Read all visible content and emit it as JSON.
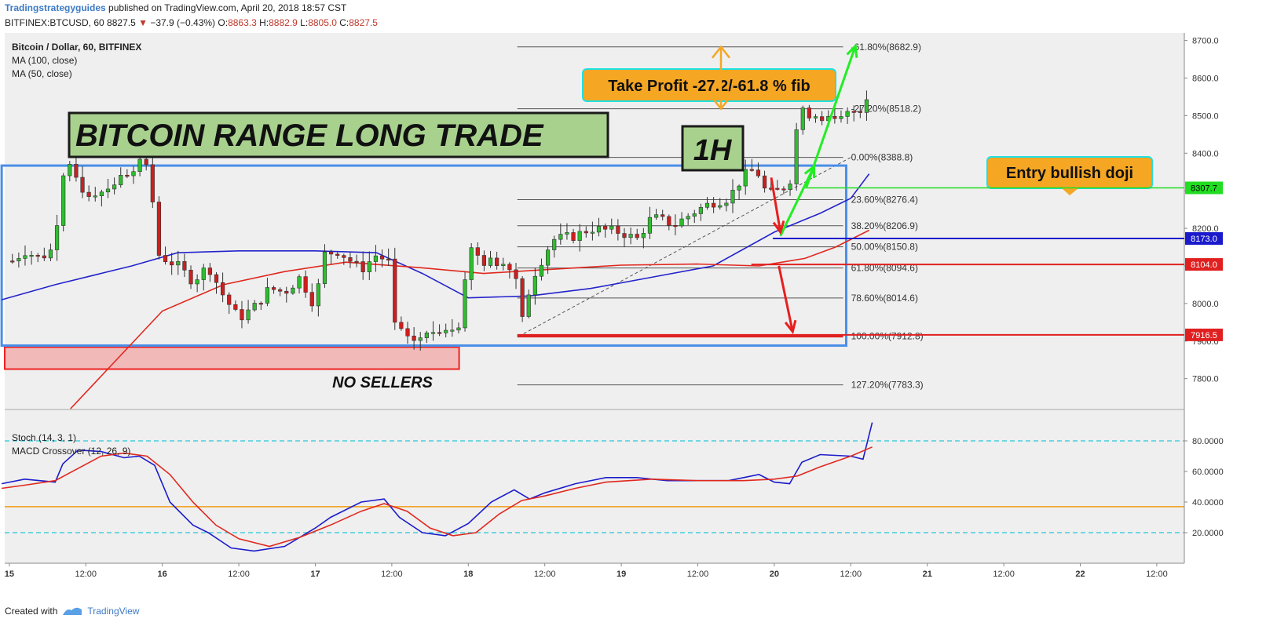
{
  "header": {
    "publisher": "Tradingstrategyguides",
    "published_text": "published on TradingView.com, April 20, 2018 18:57 CST",
    "symbol": "BITFINEX:BTCUSD, 60",
    "last": "8827.5",
    "change_arrow": "▼",
    "change": "−37.9 (−0.43%)",
    "o_label": "O:",
    "o": "8863.3",
    "h_label": "H:",
    "h": "8882.9",
    "l_label": "L:",
    "l": "8805.0",
    "c_label": "C:",
    "c": "8827.5"
  },
  "legend": {
    "title": "Bitcoin / Dollar, 60, BITFINEX",
    "ma100": "MA (100, close)",
    "ma50": "MA (50, close)"
  },
  "osc_legend": {
    "stoch": "Stoch (14, 3, 1)",
    "macd": "MACD Crossover (12, 26, 9)"
  },
  "footer": {
    "created": "Created with",
    "brand": "TradingView"
  },
  "colors": {
    "bull": "#2ebd2e",
    "bear": "#cc1f1f",
    "ma100": "#2323cc",
    "ma50": "#e0281e",
    "grid_bg": "#efefef",
    "range_box": "#4a8ee8",
    "annotation_bg": "#f5a623"
  },
  "chart_data": [
    {
      "type": "candlestick",
      "title": "Bitcoin / Dollar, 60, BITFINEX",
      "ylim": [
        7720,
        8720
      ],
      "xlim": [
        -0.03,
        7.68
      ],
      "x_unit": "days since Apr 15 00:00 (tick labels)",
      "x_ticks": [
        {
          "x": 0,
          "label": "15"
        },
        {
          "x": 0.5,
          "label": "12:00"
        },
        {
          "x": 1,
          "label": "16"
        },
        {
          "x": 1.5,
          "label": "12:00"
        },
        {
          "x": 2,
          "label": "17"
        },
        {
          "x": 2.5,
          "label": "12:00"
        },
        {
          "x": 3,
          "label": "18"
        },
        {
          "x": 3.5,
          "label": "12:00"
        },
        {
          "x": 4,
          "label": "19"
        },
        {
          "x": 4.5,
          "label": "12:00"
        },
        {
          "x": 5,
          "label": "20"
        },
        {
          "x": 5.5,
          "label": "12:00"
        },
        {
          "x": 6,
          "label": "21"
        },
        {
          "x": 6.5,
          "label": "12:00"
        },
        {
          "x": 7,
          "label": "22"
        },
        {
          "x": 7.5,
          "label": "12:00"
        }
      ],
      "y_ticks": [
        7800,
        7900,
        8000,
        8100,
        8200,
        8300,
        8400,
        8500,
        8600,
        8700
      ],
      "y_tick_labels": [
        "7800.0",
        "7900.0",
        "8000.0",
        "8100.0",
        "8200.0",
        "8300.0",
        "8400.0",
        "8500.0",
        "8600.0",
        "8700.0"
      ],
      "price_anchors": [
        {
          "x": -0.05,
          "p": 8090
        },
        {
          "x": 0.1,
          "p": 8140
        },
        {
          "x": 0.2,
          "p": 8120
        },
        {
          "x": 0.3,
          "p": 8150
        },
        {
          "x": 0.33,
          "p": 8330
        },
        {
          "x": 0.4,
          "p": 8360
        },
        {
          "x": 0.5,
          "p": 8290
        },
        {
          "x": 0.6,
          "p": 8300
        },
        {
          "x": 0.75,
          "p": 8340
        },
        {
          "x": 0.88,
          "p": 8390
        },
        {
          "x": 0.92,
          "p": 8340
        },
        {
          "x": 0.97,
          "p": 8130
        },
        {
          "x": 1.1,
          "p": 8100
        },
        {
          "x": 1.2,
          "p": 8060
        },
        {
          "x": 1.3,
          "p": 8100
        },
        {
          "x": 1.4,
          "p": 8020
        },
        {
          "x": 1.5,
          "p": 7960
        },
        {
          "x": 1.6,
          "p": 7990
        },
        {
          "x": 1.7,
          "p": 8040
        },
        {
          "x": 1.8,
          "p": 8030
        },
        {
          "x": 1.9,
          "p": 8070
        },
        {
          "x": 2.0,
          "p": 7990
        },
        {
          "x": 2.05,
          "p": 8130
        },
        {
          "x": 2.15,
          "p": 8140
        },
        {
          "x": 2.3,
          "p": 8090
        },
        {
          "x": 2.4,
          "p": 8130
        },
        {
          "x": 2.48,
          "p": 8110
        },
        {
          "x": 2.52,
          "p": 7950
        },
        {
          "x": 2.6,
          "p": 7900
        },
        {
          "x": 2.7,
          "p": 7910
        },
        {
          "x": 2.8,
          "p": 7930
        },
        {
          "x": 2.95,
          "p": 7950
        },
        {
          "x": 3.0,
          "p": 8150
        },
        {
          "x": 3.1,
          "p": 8110
        },
        {
          "x": 3.2,
          "p": 8110
        },
        {
          "x": 3.3,
          "p": 8100
        },
        {
          "x": 3.35,
          "p": 7960
        },
        {
          "x": 3.42,
          "p": 8070
        },
        {
          "x": 3.55,
          "p": 8170
        },
        {
          "x": 3.7,
          "p": 8180
        },
        {
          "x": 3.8,
          "p": 8200
        },
        {
          "x": 4.0,
          "p": 8190
        },
        {
          "x": 4.1,
          "p": 8170
        },
        {
          "x": 4.2,
          "p": 8230
        },
        {
          "x": 4.35,
          "p": 8210
        },
        {
          "x": 4.5,
          "p": 8250
        },
        {
          "x": 4.6,
          "p": 8270
        },
        {
          "x": 4.7,
          "p": 8280
        },
        {
          "x": 4.8,
          "p": 8340
        },
        {
          "x": 4.88,
          "p": 8360
        },
        {
          "x": 4.95,
          "p": 8290
        },
        {
          "x": 5.02,
          "p": 8300
        },
        {
          "x": 5.1,
          "p": 8320
        },
        {
          "x": 5.16,
          "p": 8510
        },
        {
          "x": 5.3,
          "p": 8500
        },
        {
          "x": 5.4,
          "p": 8480
        },
        {
          "x": 5.5,
          "p": 8510
        },
        {
          "x": 5.6,
          "p": 8525
        },
        {
          "x": 5.64,
          "p": 8827.5
        }
      ],
      "ma100": [
        {
          "x": -0.05,
          "p": 8010
        },
        {
          "x": 0.3,
          "p": 8050
        },
        {
          "x": 0.8,
          "p": 8100
        },
        {
          "x": 1.1,
          "p": 8135
        },
        {
          "x": 1.5,
          "p": 8140
        },
        {
          "x": 2.0,
          "p": 8140
        },
        {
          "x": 2.4,
          "p": 8135
        },
        {
          "x": 2.7,
          "p": 8080
        },
        {
          "x": 3.0,
          "p": 8015
        },
        {
          "x": 3.4,
          "p": 8020
        },
        {
          "x": 3.8,
          "p": 8040
        },
        {
          "x": 4.2,
          "p": 8070
        },
        {
          "x": 4.6,
          "p": 8100
        },
        {
          "x": 5.0,
          "p": 8190
        },
        {
          "x": 5.3,
          "p": 8240
        },
        {
          "x": 5.5,
          "p": 8280
        },
        {
          "x": 5.62,
          "p": 8345
        }
      ],
      "ma50": [
        {
          "x": 0.4,
          "p": 7720
        },
        {
          "x": 1.0,
          "p": 7980
        },
        {
          "x": 1.4,
          "p": 8050
        },
        {
          "x": 1.8,
          "p": 8085
        },
        {
          "x": 2.2,
          "p": 8110
        },
        {
          "x": 2.7,
          "p": 8095
        },
        {
          "x": 3.1,
          "p": 8080
        },
        {
          "x": 3.5,
          "p": 8090
        },
        {
          "x": 4.0,
          "p": 8102
        },
        {
          "x": 4.5,
          "p": 8105
        },
        {
          "x": 4.9,
          "p": 8100
        },
        {
          "x": 5.2,
          "p": 8120
        },
        {
          "x": 5.4,
          "p": 8150
        },
        {
          "x": 5.62,
          "p": 8195
        }
      ],
      "fib_levels": [
        {
          "label": "-61.80%(8682.9)",
          "value": 8682.9
        },
        {
          "label": "-27.20%(8518.2)",
          "value": 8518.2
        },
        {
          "label": "0.00%(8388.8)",
          "value": 8388.8
        },
        {
          "label": "23.60%(8276.4)",
          "value": 8276.4
        },
        {
          "label": "38.20%(8206.9)",
          "value": 8206.9
        },
        {
          "label": "50.00%(8150.8)",
          "value": 8150.8
        },
        {
          "label": "61.80%(8094.6)",
          "value": 8094.6
        },
        {
          "label": "78.60%(8014.6)",
          "value": 8014.6
        },
        {
          "label": "100.00%(7912.8)",
          "value": 7912.8
        },
        {
          "label": "127.20%(7783.3)",
          "value": 7783.3
        }
      ],
      "fib_x_range": [
        3.32,
        5.45
      ],
      "price_labels": [
        {
          "value": 8307.7,
          "text": "8307.7",
          "color": "#22dd22"
        },
        {
          "value": 8173.0,
          "text": "8173.0",
          "color": "#1a1acc"
        },
        {
          "value": 8104.0,
          "text": "8104.0",
          "color": "#e02020"
        },
        {
          "value": 7916.5,
          "text": "7916.5",
          "color": "#e02020"
        }
      ],
      "range_box": {
        "x0": -0.05,
        "x1": 5.47,
        "top": 8367,
        "bottom": 7888
      },
      "annotations": {
        "main_title": "BITCOIN RANGE LONG TRADE",
        "timeframe": "1H",
        "take_profit": "Take Profit -27.2/-61.8 % fib",
        "entry": "Entry bullish doji",
        "no_sellers": "NO SELLERS"
      }
    },
    {
      "type": "line",
      "title": "Stoch (14, 3, 1)",
      "ylim": [
        0,
        100
      ],
      "y_ticks": [
        20,
        40,
        60,
        80
      ],
      "y_tick_labels": [
        "20.0000",
        "40.0000",
        "60.0000",
        "80.0000"
      ],
      "levels": [
        80,
        20
      ],
      "macd_level": 37,
      "series": [
        {
          "name": "%K",
          "color": "#1c1ccc",
          "points": [
            {
              "x": -0.05,
              "v": 52
            },
            {
              "x": 0.1,
              "v": 55
            },
            {
              "x": 0.3,
              "v": 53
            },
            {
              "x": 0.35,
              "v": 65
            },
            {
              "x": 0.45,
              "v": 74
            },
            {
              "x": 0.6,
              "v": 73
            },
            {
              "x": 0.75,
              "v": 69
            },
            {
              "x": 0.85,
              "v": 70
            },
            {
              "x": 0.95,
              "v": 64
            },
            {
              "x": 1.05,
              "v": 40
            },
            {
              "x": 1.2,
              "v": 25
            },
            {
              "x": 1.3,
              "v": 20
            },
            {
              "x": 1.45,
              "v": 10
            },
            {
              "x": 1.6,
              "v": 8
            },
            {
              "x": 1.8,
              "v": 11
            },
            {
              "x": 2.0,
              "v": 23
            },
            {
              "x": 2.1,
              "v": 30
            },
            {
              "x": 2.3,
              "v": 40
            },
            {
              "x": 2.45,
              "v": 42
            },
            {
              "x": 2.55,
              "v": 30
            },
            {
              "x": 2.7,
              "v": 20
            },
            {
              "x": 2.85,
              "v": 18
            },
            {
              "x": 3.0,
              "v": 26
            },
            {
              "x": 3.15,
              "v": 40
            },
            {
              "x": 3.3,
              "v": 48
            },
            {
              "x": 3.4,
              "v": 42
            },
            {
              "x": 3.5,
              "v": 46
            },
            {
              "x": 3.7,
              "v": 52
            },
            {
              "x": 3.9,
              "v": 56
            },
            {
              "x": 4.1,
              "v": 56
            },
            {
              "x": 4.3,
              "v": 54
            },
            {
              "x": 4.5,
              "v": 54
            },
            {
              "x": 4.7,
              "v": 54
            },
            {
              "x": 4.8,
              "v": 56
            },
            {
              "x": 4.9,
              "v": 58
            },
            {
              "x": 5.0,
              "v": 53
            },
            {
              "x": 5.1,
              "v": 52
            },
            {
              "x": 5.18,
              "v": 66
            },
            {
              "x": 5.3,
              "v": 71
            },
            {
              "x": 5.5,
              "v": 70
            },
            {
              "x": 5.58,
              "v": 68
            },
            {
              "x": 5.64,
              "v": 92
            }
          ]
        },
        {
          "name": "%D",
          "color": "#e0281e",
          "points": [
            {
              "x": -0.05,
              "v": 49
            },
            {
              "x": 0.1,
              "v": 51
            },
            {
              "x": 0.3,
              "v": 54
            },
            {
              "x": 0.45,
              "v": 62
            },
            {
              "x": 0.6,
              "v": 70
            },
            {
              "x": 0.75,
              "v": 72
            },
            {
              "x": 0.9,
              "v": 70
            },
            {
              "x": 1.05,
              "v": 58
            },
            {
              "x": 1.2,
              "v": 40
            },
            {
              "x": 1.35,
              "v": 25
            },
            {
              "x": 1.5,
              "v": 16
            },
            {
              "x": 1.7,
              "v": 11
            },
            {
              "x": 1.9,
              "v": 17
            },
            {
              "x": 2.1,
              "v": 25
            },
            {
              "x": 2.3,
              "v": 34
            },
            {
              "x": 2.45,
              "v": 39
            },
            {
              "x": 2.6,
              "v": 34
            },
            {
              "x": 2.75,
              "v": 23
            },
            {
              "x": 2.9,
              "v": 18
            },
            {
              "x": 3.05,
              "v": 20
            },
            {
              "x": 3.2,
              "v": 32
            },
            {
              "x": 3.35,
              "v": 41
            },
            {
              "x": 3.5,
              "v": 44
            },
            {
              "x": 3.7,
              "v": 49
            },
            {
              "x": 3.9,
              "v": 53
            },
            {
              "x": 4.2,
              "v": 55
            },
            {
              "x": 4.5,
              "v": 54
            },
            {
              "x": 4.8,
              "v": 54
            },
            {
              "x": 5.0,
              "v": 55
            },
            {
              "x": 5.15,
              "v": 57
            },
            {
              "x": 5.3,
              "v": 63
            },
            {
              "x": 5.5,
              "v": 70
            },
            {
              "x": 5.64,
              "v": 76
            }
          ]
        }
      ]
    }
  ]
}
